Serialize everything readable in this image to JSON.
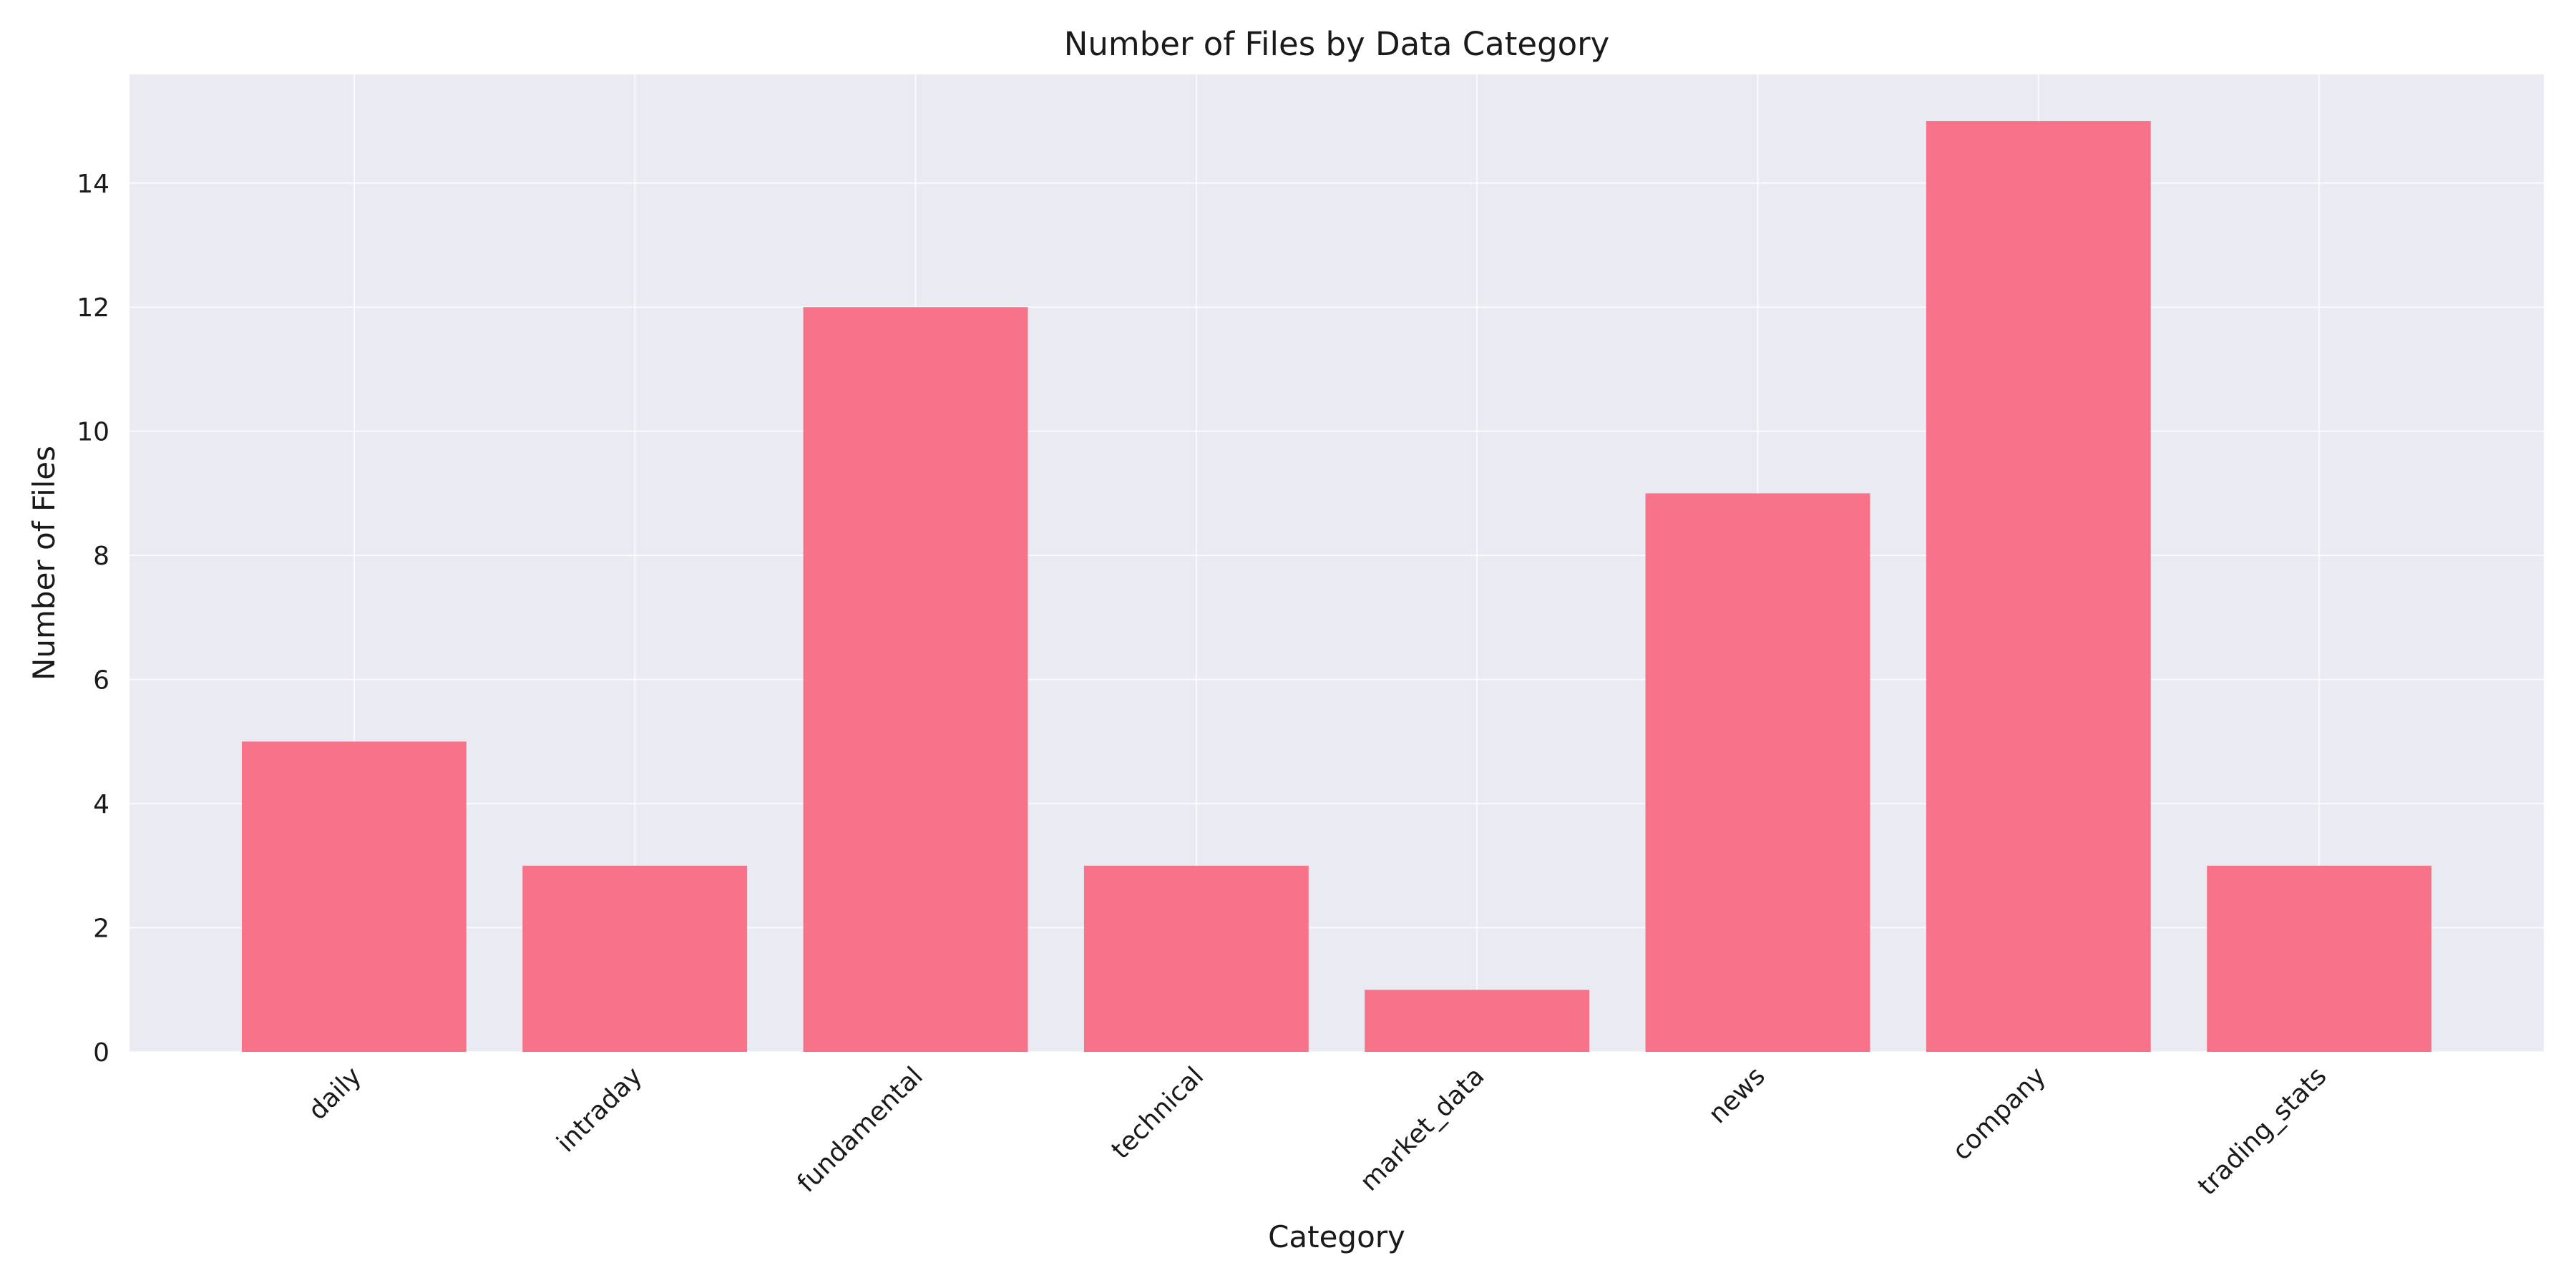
{
  "chart_data": {
    "type": "bar",
    "title": "Number of Files by Data Category",
    "xlabel": "Category",
    "ylabel": "Number of Files",
    "categories": [
      "daily",
      "intraday",
      "fundamental",
      "technical",
      "market_data",
      "news",
      "company",
      "trading_stats"
    ],
    "values": [
      5,
      3,
      12,
      3,
      1,
      9,
      15,
      3
    ],
    "ylim": [
      0,
      15.75
    ],
    "yticks": [
      0,
      2,
      4,
      6,
      8,
      10,
      12,
      14
    ],
    "grid": true,
    "legend": "none",
    "bar_color": "#f7738a",
    "plot_background": "#eaeaf2"
  }
}
